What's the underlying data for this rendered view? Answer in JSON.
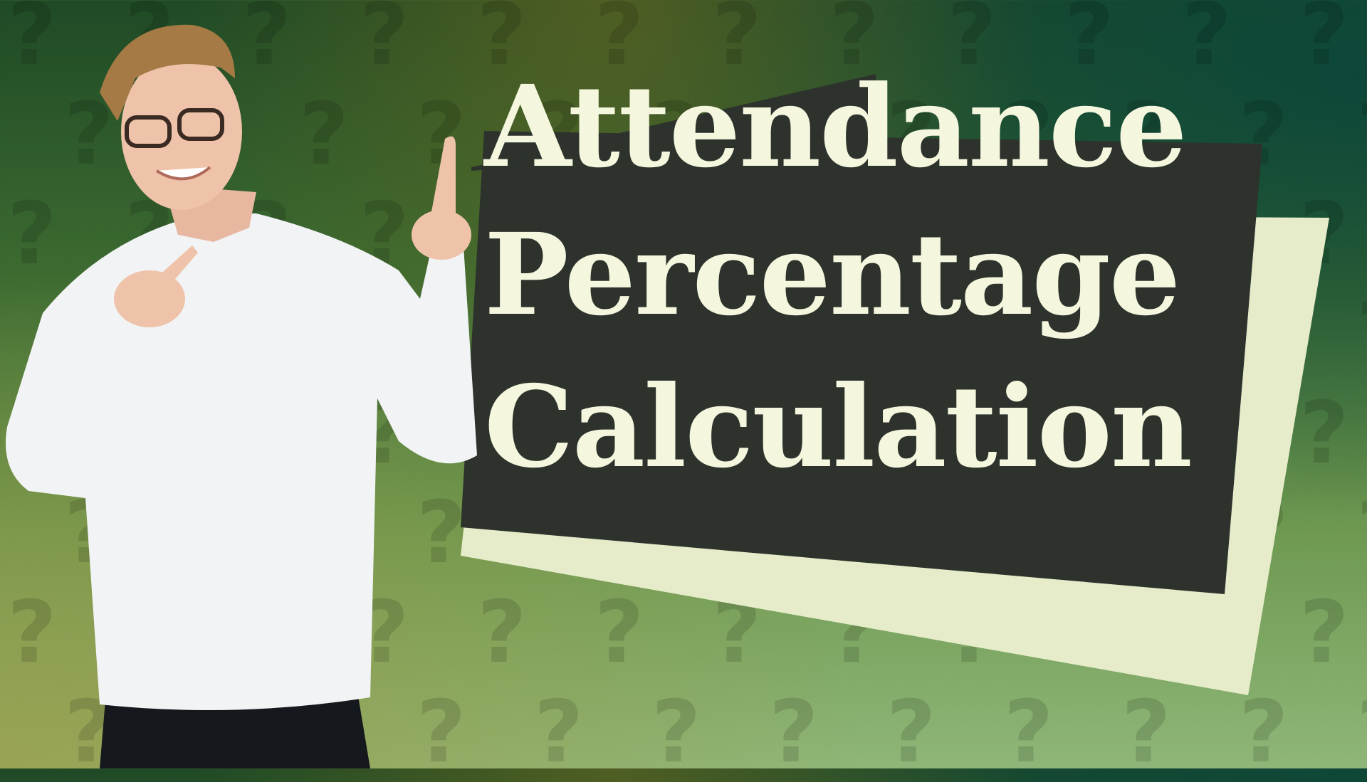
{
  "title": {
    "lines": [
      "Attendance",
      "Percentage",
      "Calculation"
    ]
  },
  "colors": {
    "panel_dark": "#2d332c",
    "panel_light": "#e6ecc9",
    "title_text": "#f4f6dd",
    "background_top": "#1f4a26",
    "background_bottom": "#8fb678"
  },
  "background_pattern_icon": "question-mark-icon",
  "person": "smiling man in white shirt pointing up"
}
